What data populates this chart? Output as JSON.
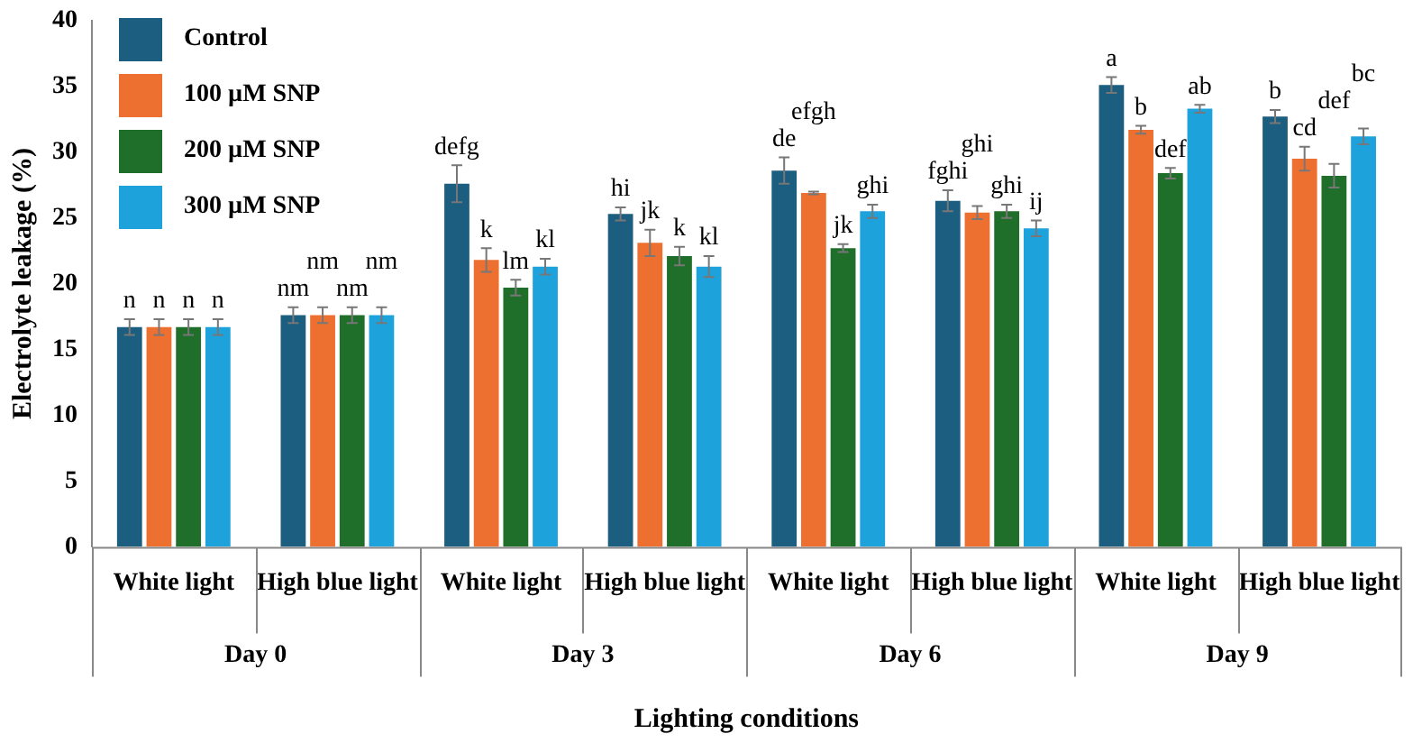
{
  "chart_data": {
    "type": "bar",
    "xlabel": "Lighting conditions",
    "ylabel": "Electrolyte leakage (%)",
    "categories": [
      "White light",
      "High blue light",
      "White light",
      "High blue light",
      "White light",
      "High blue light",
      "White light",
      "High blue light"
    ],
    "annotations": [
      "Day 0",
      "Day 3",
      "Day 6",
      "Day 9"
    ],
    "ylim": [
      0,
      40
    ],
    "yticks": [
      0,
      5,
      10,
      15,
      20,
      25,
      30,
      35,
      40
    ],
    "legend": "top left",
    "series": [
      {
        "name": "Control",
        "color": "#1b5e80",
        "values": [
          16.7,
          17.6,
          27.6,
          25.3,
          28.6,
          26.3,
          35.1,
          32.7
        ],
        "errors": [
          0.6,
          0.6,
          1.4,
          0.5,
          1.0,
          0.8,
          0.6,
          0.5
        ],
        "value_labels": [
          "n",
          "nm",
          "defg",
          "hi",
          "de",
          "fghi",
          "a",
          "b"
        ]
      },
      {
        "name": "100 µM SNP",
        "color": "#ed7030",
        "values": [
          16.7,
          17.6,
          21.8,
          23.1,
          26.9,
          25.4,
          31.7,
          29.5
        ],
        "errors": [
          0.6,
          0.6,
          0.9,
          1.0,
          0.1,
          0.5,
          0.3,
          0.9
        ],
        "value_labels": [
          "n",
          "nm",
          "k",
          "jk",
          "efgh",
          "ghi",
          "b",
          "cd"
        ]
      },
      {
        "name": "200 µM SNP",
        "color": "#1f6e2a",
        "values": [
          16.7,
          17.6,
          19.7,
          22.1,
          22.7,
          25.5,
          28.4,
          28.2
        ],
        "errors": [
          0.6,
          0.6,
          0.6,
          0.7,
          0.3,
          0.5,
          0.4,
          0.9
        ],
        "value_labels": [
          "n",
          "nm",
          "lm",
          "k",
          "jk",
          "ghi",
          "def",
          "def"
        ]
      },
      {
        "name": "300 µM SNP",
        "color": "#1ea2dc",
        "values": [
          16.7,
          17.6,
          21.3,
          21.3,
          25.5,
          24.2,
          33.3,
          31.2
        ],
        "errors": [
          0.6,
          0.6,
          0.6,
          0.8,
          0.5,
          0.6,
          0.3,
          0.6
        ],
        "value_labels": [
          "n",
          "nm",
          "kl",
          "kl",
          "ghi",
          "ij",
          "ab",
          "bc"
        ]
      }
    ]
  }
}
